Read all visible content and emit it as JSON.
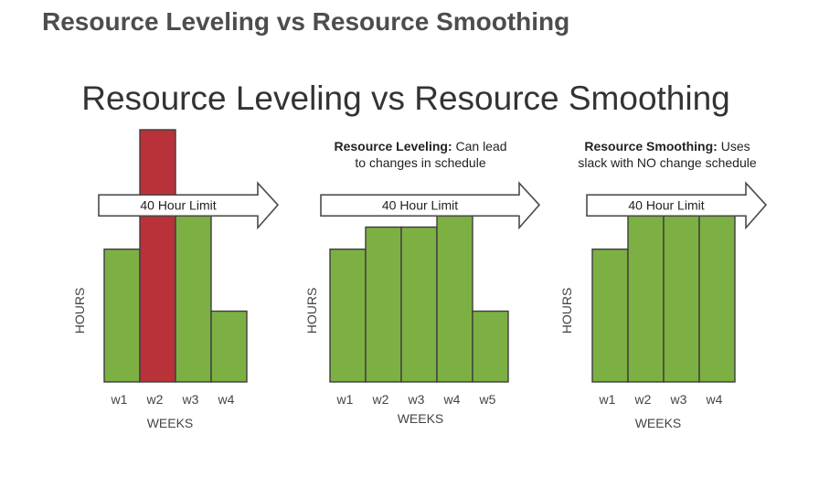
{
  "page": {
    "heading": "Resource Leveling vs Resource Smoothing"
  },
  "chart_title": "Resource Leveling vs Resource Smoothing",
  "colors": {
    "bar_default": "#7db043",
    "bar_over_limit": "#b9323a",
    "bar_stroke": "#3d3d3d"
  },
  "chart_data": [
    {
      "type": "bar",
      "title": "",
      "annotation_bold": "",
      "annotation_rest": "",
      "annotation_line2": "",
      "limit_label": "40 Hour Limit",
      "limit_value": 40,
      "categories": [
        "w1",
        "w2",
        "w3",
        "w4"
      ],
      "values": [
        30,
        57,
        40,
        16
      ],
      "highlight": [
        false,
        true,
        false,
        false
      ],
      "xlabel": "WEEKS",
      "ylabel": "HOURS",
      "ylim": [
        0,
        57
      ]
    },
    {
      "type": "bar",
      "title": "",
      "annotation_bold": "Resource Leveling:",
      "annotation_rest": " Can lead",
      "annotation_line2": "to changes in schedule",
      "limit_label": "40 Hour Limit",
      "limit_value": 40,
      "categories": [
        "w1",
        "w2",
        "w3",
        "w4",
        "w5"
      ],
      "values": [
        30,
        35,
        35,
        40,
        16
      ],
      "highlight": [
        false,
        false,
        false,
        false,
        false
      ],
      "xlabel": "WEEKS",
      "ylabel": "HOURS",
      "ylim": [
        0,
        57
      ]
    },
    {
      "type": "bar",
      "title": "",
      "annotation_bold": "Resource Smoothing:",
      "annotation_rest": " Uses",
      "annotation_line2": "slack with NO change schedule",
      "limit_label": "40 Hour Limit",
      "limit_value": 40,
      "categories": [
        "w1",
        "w2",
        "w3",
        "w4"
      ],
      "values": [
        30,
        40,
        40,
        40
      ],
      "highlight": [
        false,
        false,
        false,
        false
      ],
      "xlabel": "WEEKS",
      "ylabel": "HOURS",
      "ylim": [
        0,
        57
      ]
    }
  ]
}
